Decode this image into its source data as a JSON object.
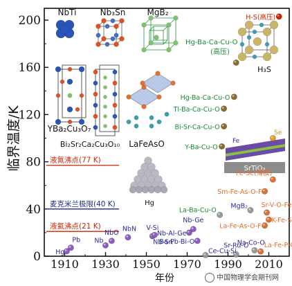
{
  "chart_data": {
    "type": "scatter",
    "ylabel": "临界温度/K",
    "xlabel": "年份",
    "xlim": [
      1900,
      2020
    ],
    "ylim": [
      0,
      210
    ],
    "x_ticks": [
      1910,
      1930,
      1950,
      1970,
      1990,
      2010
    ],
    "y_ticks": [
      0,
      40,
      80,
      120,
      160,
      200
    ],
    "reference_lines": [
      {
        "label": "液氮沸点(77 K)",
        "value": 77,
        "color": "#cc2200"
      },
      {
        "label": "麦克米兰极限(40 K)",
        "value": 40,
        "color": "#1a2a8a"
      },
      {
        "label": "液氦沸点(21 K)",
        "value": 21,
        "color": "#cc2200"
      }
    ],
    "points": [
      {
        "label": "Hg",
        "x": 1911,
        "y": 4.2,
        "color": "#8e5cc0"
      },
      {
        "label": "Pb",
        "x": 1913,
        "y": 7.2,
        "color": "#8e5cc0"
      },
      {
        "label": "Nb",
        "x": 1930,
        "y": 9.2,
        "color": "#8e5cc0"
      },
      {
        "label": "NbO",
        "x": 1933,
        "y": 13,
        "color": "#8e5cc0"
      },
      {
        "label": "NbN",
        "x": 1941,
        "y": 16,
        "color": "#8e5cc0"
      },
      {
        "label": "V-Si",
        "x": 1953,
        "y": 17,
        "color": "#8e5cc0"
      },
      {
        "label": "Nb-Sn",
        "x": 1954,
        "y": 18,
        "color": "#8e5cc0"
      },
      {
        "label": "Ba-Pb-Bi-O",
        "x": 1975,
        "y": 13,
        "color": "#8e5cc0"
      },
      {
        "label": "Nb-Al-Ge",
        "x": 1971,
        "y": 20,
        "color": "#8e5cc0"
      },
      {
        "label": "Nb-Ge",
        "x": 1973,
        "y": 23,
        "color": "#8e5cc0"
      },
      {
        "label": "La-Ba-Cu-O",
        "x": 1986,
        "y": 35,
        "color": "#999999"
      },
      {
        "label": "Y-Ba-Cu-O",
        "x": 1987,
        "y": 93,
        "color": "#8a6a30"
      },
      {
        "label": "Bi-Sr-Ca-Cu-O",
        "x": 1988,
        "y": 110,
        "color": "#8a6a30"
      },
      {
        "label": "Tl-Ba-Ca-Cu-O",
        "x": 1988,
        "y": 125,
        "color": "#8a6a30"
      },
      {
        "label": "Hg-Ba-Ca-Cu-O",
        "x": 1993,
        "y": 135,
        "color": "#8a6a30"
      },
      {
        "label": "Hg-Ba-Ca-Cu-O (高压)",
        "x": 1994,
        "y": 164,
        "color": "#8a6a30"
      },
      {
        "label": "MgB2",
        "x": 2001,
        "y": 39,
        "color": "#999999"
      },
      {
        "label": "Sr-Ru-O",
        "x": 1994,
        "y": 1.5,
        "color": "#999999"
      },
      {
        "label": "Na-Co-O",
        "x": 2003,
        "y": 5,
        "color": "#999999"
      },
      {
        "label": "Ce-Cu-Si",
        "x": 1979,
        "y": 1,
        "color": "#999999"
      },
      {
        "label": "La-Fe-P-O",
        "x": 2006,
        "y": 4,
        "color": "#e07030"
      },
      {
        "label": "La-Fe-As-O-F",
        "x": 2008,
        "y": 26,
        "color": "#e07030"
      },
      {
        "label": "K-Fe-Se",
        "x": 2010,
        "y": 31,
        "color": "#e07030"
      },
      {
        "label": "Sr-V-O-Fe-As",
        "x": 2009,
        "y": 37,
        "color": "#e07030"
      },
      {
        "label": "Sm-Fe-As-O-F",
        "x": 2008,
        "y": 55,
        "color": "#e07030"
      },
      {
        "label": "Fe-Se(薄膜)",
        "x": 2012,
        "y": 65,
        "color": "#e07030"
      },
      {
        "label": "H-S(高压)",
        "x": 2015,
        "y": 203,
        "color": "#cc2200"
      },
      {
        "label": "Fe-Se/SrTiO3",
        "x": 2012,
        "y": 100,
        "color": "#e0a020"
      }
    ],
    "point_labels": [
      {
        "text": "Hg",
        "anchor": "end",
        "dx": -3,
        "dy": 4,
        "color": "#2a2a9a",
        "p": 0
      },
      {
        "text": "Pb",
        "anchor": "start",
        "dx": 2,
        "dy": -8,
        "color": "#2a2a9a",
        "p": 1
      },
      {
        "text": "Nb",
        "anchor": "end",
        "dx": -3,
        "dy": -4,
        "color": "#2a2a9a",
        "p": 2
      },
      {
        "text": "NbO",
        "anchor": "middle",
        "dx": 0,
        "dy": -9,
        "color": "#2a2a9a",
        "p": 3
      },
      {
        "text": "NbN",
        "anchor": "middle",
        "dx": 2,
        "dy": -9,
        "color": "#2a2a9a",
        "p": 4
      },
      {
        "text": "V-Si",
        "anchor": "middle",
        "dx": 0,
        "dy": -9,
        "color": "#2a2a9a",
        "p": 5
      },
      {
        "text": "Nb-Sn",
        "anchor": "start",
        "dx": -2,
        "dy": 13,
        "color": "#2a2a9a",
        "p": 6
      },
      {
        "text": "Ba-Pb-Bi-O",
        "anchor": "end",
        "dx": -4,
        "dy": 4,
        "color": "#2a2a9a",
        "p": 7
      },
      {
        "text": "Nb-Al-Ge",
        "anchor": "end",
        "dx": -4,
        "dy": 4,
        "color": "#2a2a9a",
        "p": 8
      },
      {
        "text": "Nb-Ge",
        "anchor": "middle",
        "dx": 0,
        "dy": -10,
        "color": "#2a2a9a",
        "p": 9
      },
      {
        "text": "La-Ba-Cu-O",
        "anchor": "end",
        "dx": -5,
        "dy": -4,
        "color": "#1a8a30",
        "p": 10
      },
      {
        "text": "Y-Ba-Cu-O",
        "anchor": "end",
        "dx": -6,
        "dy": 4,
        "color": "#1a8a30",
        "p": 11
      },
      {
        "text": "Bi-Sr-Ca-Cu-O",
        "anchor": "end",
        "dx": -6,
        "dy": 4,
        "color": "#1a8a30",
        "p": 12
      },
      {
        "text": "Tl-Ba-Ca-Cu-O",
        "anchor": "end",
        "dx": -6,
        "dy": 4,
        "color": "#1a8a30",
        "p": 13
      },
      {
        "text": "Hg-Ba-Ca-Cu-O",
        "anchor": "end",
        "dx": -6,
        "dy": 4,
        "color": "#1a8a30",
        "p": 14
      },
      {
        "text": "MgB₂",
        "anchor": "end",
        "dx": -4,
        "dy": -3,
        "color": "#2a2a9a",
        "p": 16
      },
      {
        "text": "Sr-Ru-O",
        "anchor": "start",
        "dx": -18,
        "dy": -10,
        "color": "#2a2a9a",
        "p": 17
      },
      {
        "text": "Na-Co-O",
        "anchor": "middle",
        "dx": -5,
        "dy": -8,
        "color": "#2a2a9a",
        "p": 18
      },
      {
        "text": "Ce-Cu-Si",
        "anchor": "start",
        "dx": 4,
        "dy": -3,
        "color": "#2a2a9a",
        "p": 19
      },
      {
        "text": "La-Fe-P-O",
        "anchor": "start",
        "dx": 5,
        "dy": -6,
        "color": "#e07030",
        "p": 20
      },
      {
        "text": "La-Fe-As-O-F",
        "anchor": "end",
        "dx": -5,
        "dy": 4,
        "color": "#e07030",
        "p": 21
      },
      {
        "text": "K-Fe-Se",
        "anchor": "start",
        "dx": 4,
        "dy": 4,
        "color": "#e07030",
        "p": 22
      },
      {
        "text": "Sr-V-O-Fe-As",
        "anchor": "start",
        "dx": -8,
        "dy": -8,
        "color": "#e07030",
        "p": 23
      },
      {
        "text": "Sm-Fe-As-O-F",
        "anchor": "end",
        "dx": -4,
        "dy": 4,
        "color": "#e07030",
        "p": 24
      },
      {
        "text": "Fe-Se(薄膜)",
        "anchor": "end",
        "dx": -1,
        "dy": -6,
        "color": "#e07030",
        "p": 25
      },
      {
        "text": "H-S(高压)",
        "anchor": "end",
        "dx": -5,
        "dy": 4,
        "color": "#cc2200",
        "p": 26
      }
    ],
    "crystal_labels": {
      "nbti": "NbTi",
      "nb3sn": "Nb₃Sn",
      "mgb2": "MgB₂",
      "h3s": "H₃S",
      "hbc_high": "Hg-Ba-Ca-Cu-O",
      "hbc_high2": "(高压)",
      "ybco": "YBa₂Cu₃O₇",
      "bscco": "Bi₂Sr₂Ca₂Cu₃O₁₀",
      "lafeaso": "LaFeAsO",
      "hg": "Hg",
      "sto": "SrTiO₃",
      "fe": "Fe",
      "se": "Se"
    }
  },
  "watermark": "中国物理学会期刊网",
  "colors": {
    "axis": "#111111",
    "cuprate_label": "#1a8a30",
    "conventional_label": "#2a2a9a",
    "iron_label": "#e07030"
  }
}
